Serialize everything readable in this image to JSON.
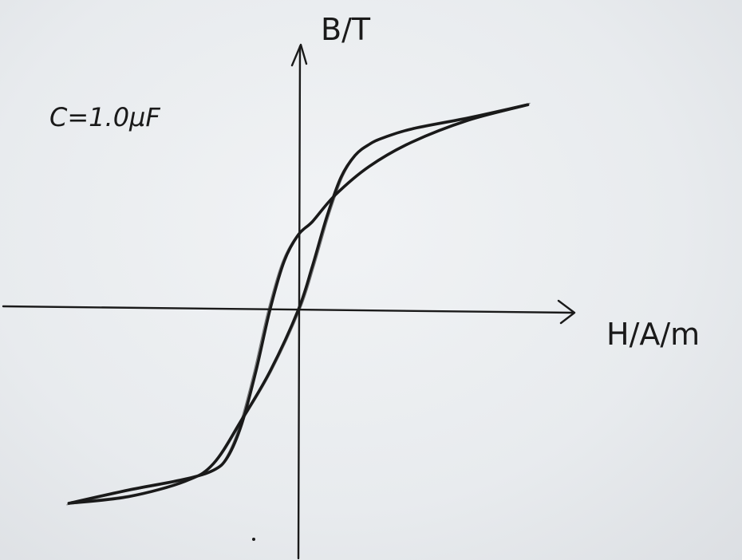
{
  "chart_data": {
    "type": "line",
    "title": "",
    "xlabel": "H/A/m",
    "ylabel": "B/T",
    "annotation": "C=1.0μF",
    "xlim": [
      -1.0,
      1.0
    ],
    "ylim": [
      -1.0,
      1.0
    ],
    "grid": false,
    "legend": "none",
    "series": [
      {
        "branch": "descending",
        "x": [
          0.81,
          0.6,
          0.4,
          0.25,
          0.13,
          0.05,
          0.0,
          -0.05,
          -0.1,
          -0.15,
          -0.2,
          -0.25,
          -0.3,
          -0.4,
          -0.6,
          -0.81
        ],
        "y": [
          0.93,
          0.86,
          0.76,
          0.65,
          0.52,
          0.4,
          0.34,
          0.22,
          0.0,
          -0.28,
          -0.52,
          -0.67,
          -0.73,
          -0.77,
          -0.82,
          -0.88
        ]
      },
      {
        "branch": "ascending",
        "x": [
          -0.81,
          -0.6,
          -0.4,
          -0.3,
          -0.2,
          -0.1,
          0.0,
          0.05,
          0.1,
          0.15,
          0.2,
          0.25,
          0.3,
          0.4,
          0.6,
          0.81
        ],
        "y": [
          -0.88,
          -0.85,
          -0.78,
          -0.7,
          -0.5,
          -0.28,
          0.0,
          0.2,
          0.42,
          0.6,
          0.7,
          0.75,
          0.78,
          0.82,
          0.87,
          0.93
        ]
      }
    ]
  },
  "colors": {
    "ink": "#1a1a1a",
    "paper": "#eceef0"
  }
}
